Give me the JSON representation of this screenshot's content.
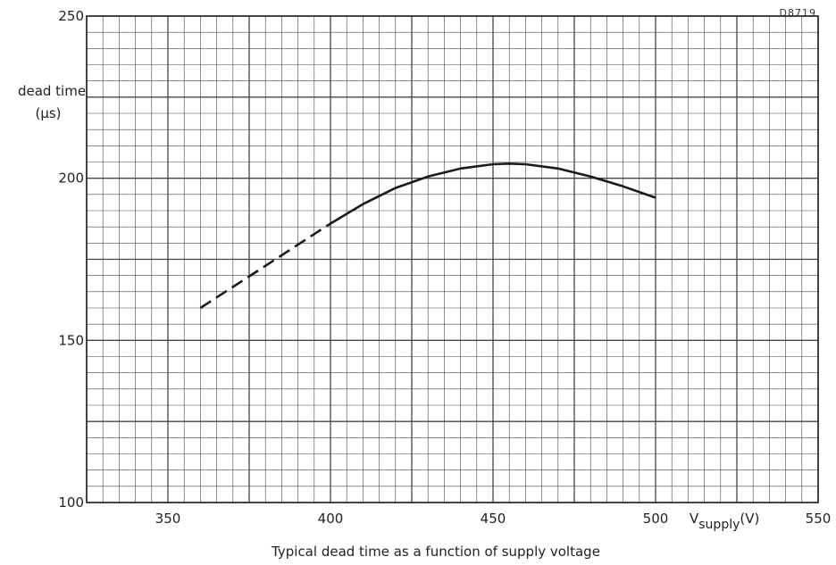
{
  "drawing_code": "D8719",
  "caption": "Typical dead time as a function of supply voltage",
  "chart_data": {
    "type": "line",
    "title": "",
    "ylabel_line1": "dead time",
    "ylabel_line2": "(μs)",
    "xlabel_main": "V",
    "xlabel_sub": "supply",
    "xlabel_unit": "(V)",
    "xlim": [
      325,
      550
    ],
    "ylim": [
      100,
      250
    ],
    "x_ticks": [
      350,
      400,
      450,
      500,
      550
    ],
    "y_ticks": [
      100,
      150,
      200,
      250
    ],
    "grid": true,
    "series": [
      {
        "style": "dashed",
        "x": [
          360,
          370,
          380,
          390,
          400
        ],
        "y": [
          160,
          166.5,
          173,
          179.5,
          186
        ]
      },
      {
        "style": "solid",
        "x": [
          400,
          410,
          420,
          430,
          440,
          450,
          455,
          460,
          470,
          480,
          490,
          500
        ],
        "y": [
          186,
          192,
          197,
          200.5,
          203,
          204.3,
          204.5,
          204.3,
          203,
          200.5,
          197.5,
          194
        ]
      }
    ]
  }
}
